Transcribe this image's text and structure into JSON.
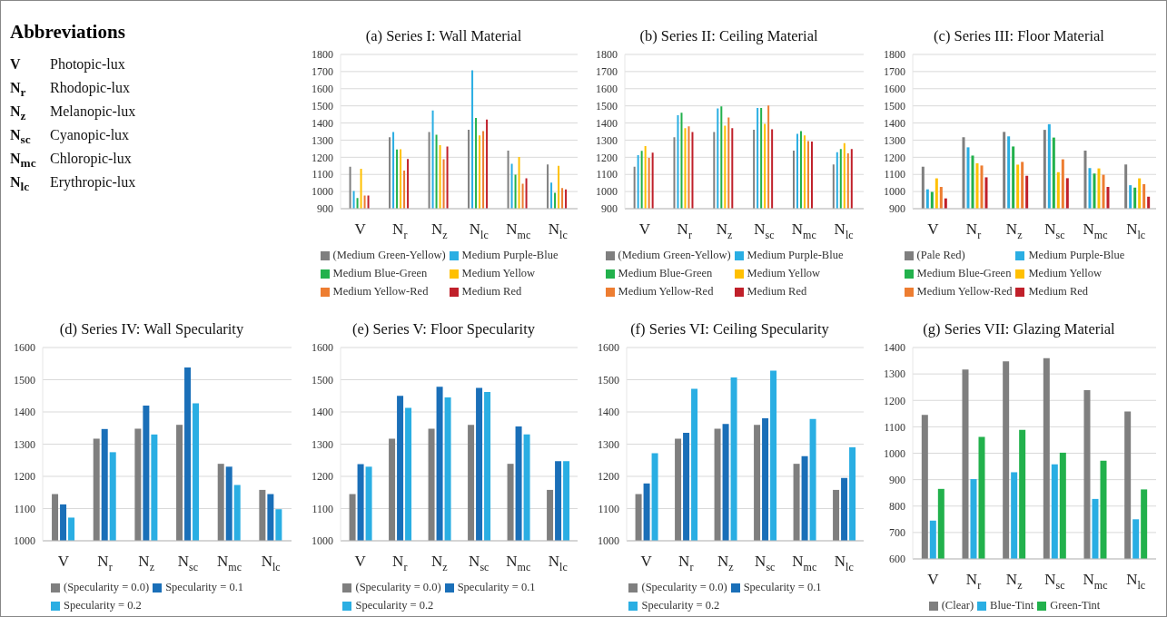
{
  "chart_data": [
    {
      "type": "other",
      "title": "Abbreviations",
      "annotations": [
        "V Photopic-lux",
        "N$_{r}$ Rhodopic-lux",
        "N$_{z}$ Melanopic-lux",
        "N$_{sc}$ Cyanopic-lux",
        "N$_{mc}$ Chloropic-lux",
        "N$_{lc}$ Erythropic-lux"
      ]
    },
    {
      "type": "bar",
      "title": "(a) Series I: Wall Material",
      "categories": [
        "V",
        "N$_{r}$",
        "N$_{z}$",
        "N$_{lc}$",
        "N$_{mc}$",
        "N$_{lc}$"
      ],
      "ylim": [
        900,
        1800
      ],
      "yticks": [
        900,
        1000,
        1100,
        1200,
        1300,
        1400,
        1500,
        1600,
        1700,
        1800
      ],
      "grid": "y",
      "legend": "bottom",
      "series": [
        {
          "name": "(Medium Green-Yellow)",
          "color": "#7f7f7f",
          "values": [
            1145,
            1317,
            1348,
            1360,
            1239,
            1158
          ]
        },
        {
          "name": "Medium Purple-Blue",
          "color": "#2aaee3",
          "values": [
            1003,
            1347,
            1473,
            1707,
            1162,
            1052
          ]
        },
        {
          "name": "Medium Blue-Green",
          "color": "#22b14c",
          "values": [
            962,
            1245,
            1332,
            1430,
            1098,
            993
          ]
        },
        {
          "name": "Medium Yellow",
          "color": "#ffc000",
          "values": [
            1133,
            1247,
            1270,
            1328,
            1202,
            1150
          ]
        },
        {
          "name": "Medium Yellow-Red",
          "color": "#ed7d31",
          "values": [
            977,
            1123,
            1188,
            1353,
            1045,
            1020
          ]
        },
        {
          "name": "Medium Red",
          "color": "#c0202a",
          "values": [
            977,
            1190,
            1263,
            1420,
            1077,
            1013
          ]
        }
      ]
    },
    {
      "type": "bar",
      "title": "(b) Series II: Ceiling Material",
      "categories": [
        "V",
        "N$_{r}$",
        "N$_{z}$",
        "N$_{sc}$",
        "N$_{mc}$",
        "N$_{lc}$"
      ],
      "ylim": [
        900,
        1800
      ],
      "yticks": [
        900,
        1000,
        1100,
        1200,
        1300,
        1400,
        1500,
        1600,
        1700,
        1800
      ],
      "grid": "y",
      "legend": "bottom",
      "series": [
        {
          "name": "(Medium Green-Yellow)",
          "color": "#7f7f7f",
          "values": [
            1145,
            1317,
            1348,
            1360,
            1239,
            1158
          ]
        },
        {
          "name": "Medium Purple-Blue",
          "color": "#2aaee3",
          "values": [
            1213,
            1445,
            1485,
            1487,
            1337,
            1230
          ]
        },
        {
          "name": "Medium Blue-Green",
          "color": "#22b14c",
          "values": [
            1238,
            1460,
            1497,
            1487,
            1353,
            1248
          ]
        },
        {
          "name": "Medium Yellow",
          "color": "#ffc000",
          "values": [
            1265,
            1370,
            1385,
            1395,
            1327,
            1283
          ]
        },
        {
          "name": "Medium Yellow-Red",
          "color": "#ed7d31",
          "values": [
            1197,
            1380,
            1432,
            1502,
            1295,
            1223
          ]
        },
        {
          "name": "Medium Red",
          "color": "#c0202a",
          "values": [
            1227,
            1348,
            1370,
            1363,
            1292,
            1248
          ]
        }
      ]
    },
    {
      "type": "bar",
      "title": "(c) Series III: Floor Material",
      "categories": [
        "V",
        "N$_{r}$",
        "N$_{z}$",
        "N$_{sc}$",
        "N$_{mc}$",
        "N$_{lc}$"
      ],
      "ylim": [
        900,
        1800
      ],
      "yticks": [
        900,
        1000,
        1100,
        1200,
        1300,
        1400,
        1500,
        1600,
        1700,
        1800
      ],
      "grid": "y",
      "legend": "bottom",
      "series": [
        {
          "name": "(Pale Red)",
          "color": "#7f7f7f",
          "values": [
            1145,
            1317,
            1348,
            1360,
            1239,
            1158
          ]
        },
        {
          "name": "Medium Purple-Blue",
          "color": "#2aaee3",
          "values": [
            1013,
            1258,
            1322,
            1393,
            1137,
            1037
          ]
        },
        {
          "name": "Medium Blue-Green",
          "color": "#22b14c",
          "values": [
            998,
            1210,
            1263,
            1315,
            1105,
            1023
          ]
        },
        {
          "name": "Medium Yellow",
          "color": "#ffc000",
          "values": [
            1077,
            1165,
            1157,
            1113,
            1135,
            1077
          ]
        },
        {
          "name": "Medium Yellow-Red",
          "color": "#ed7d31",
          "values": [
            1027,
            1152,
            1173,
            1188,
            1098,
            1043
          ]
        },
        {
          "name": "Medium Red",
          "color": "#c0202a",
          "values": [
            960,
            1083,
            1092,
            1078,
            1027,
            970
          ]
        }
      ]
    },
    {
      "type": "bar",
      "title": "(d) Series IV: Wall Specularity",
      "categories": [
        "V",
        "N$_{r}$",
        "N$_{z}$",
        "N$_{sc}$",
        "N$_{mc}$",
        "N$_{lc}$"
      ],
      "ylim": [
        1000,
        1600
      ],
      "yticks": [
        1000,
        1100,
        1200,
        1300,
        1400,
        1500,
        1600
      ],
      "grid": "y",
      "legend": "bottom",
      "series": [
        {
          "name": "(Specularity = 0.0)",
          "color": "#7f7f7f",
          "values": [
            1145,
            1317,
            1348,
            1360,
            1239,
            1158
          ]
        },
        {
          "name": "Specularity = 0.1",
          "color": "#1a6fb8",
          "values": [
            1113,
            1347,
            1420,
            1538,
            1230,
            1145
          ]
        },
        {
          "name": "Specularity = 0.2",
          "color": "#2aaee3",
          "values": [
            1072,
            1275,
            1330,
            1427,
            1173,
            1098
          ]
        }
      ]
    },
    {
      "type": "bar",
      "title": "(e) Series V: Floor Specularity",
      "categories": [
        "V",
        "N$_{r}$",
        "N$_{z}$",
        "N$_{sc}$",
        "N$_{mc}$",
        "N$_{lc}$"
      ],
      "ylim": [
        1000,
        1600
      ],
      "yticks": [
        1000,
        1100,
        1200,
        1300,
        1400,
        1500,
        1600
      ],
      "grid": "y",
      "legend": "bottom",
      "series": [
        {
          "name": "(Specularity = 0.0)",
          "color": "#7f7f7f",
          "values": [
            1145,
            1317,
            1348,
            1360,
            1239,
            1158
          ]
        },
        {
          "name": "Specularity = 0.1",
          "color": "#1a6fb8",
          "values": [
            1238,
            1450,
            1478,
            1475,
            1355,
            1247
          ]
        },
        {
          "name": "Specularity = 0.2",
          "color": "#2aaee3",
          "values": [
            1230,
            1413,
            1445,
            1462,
            1330,
            1247
          ]
        }
      ]
    },
    {
      "type": "bar",
      "title": "(f) Series VI: Ceiling Specularity",
      "categories": [
        "V",
        "N$_{r}$",
        "N$_{z}$",
        "N$_{sc}$",
        "N$_{mc}$",
        "N$_{lc}$"
      ],
      "ylim": [
        1000,
        1600
      ],
      "yticks": [
        1000,
        1100,
        1200,
        1300,
        1400,
        1500,
        1600
      ],
      "grid": "y",
      "legend": "bottom",
      "series": [
        {
          "name": "(Specularity = 0.0)",
          "color": "#7f7f7f",
          "values": [
            1145,
            1317,
            1348,
            1360,
            1239,
            1158
          ]
        },
        {
          "name": "Specularity = 0.1",
          "color": "#1a6fb8",
          "values": [
            1178,
            1335,
            1363,
            1380,
            1263,
            1195
          ]
        },
        {
          "name": "Specularity = 0.2",
          "color": "#2aaee3",
          "values": [
            1272,
            1472,
            1507,
            1528,
            1378,
            1290
          ]
        }
      ]
    },
    {
      "type": "bar",
      "title": "(g) Series VII: Glazing Material",
      "categories": [
        "V",
        "N$_{r}$",
        "N$_{z}$",
        "N$_{sc}$",
        "N$_{mc}$",
        "N$_{lc}$"
      ],
      "ylim": [
        600,
        1400
      ],
      "yticks": [
        600,
        700,
        800,
        900,
        1000,
        1100,
        1200,
        1300,
        1400
      ],
      "grid": "y",
      "legend": "bottom",
      "series": [
        {
          "name": "(Clear)",
          "color": "#7f7f7f",
          "values": [
            1145,
            1317,
            1348,
            1360,
            1239,
            1158
          ]
        },
        {
          "name": "Blue-Tint",
          "color": "#2aaee3",
          "values": [
            745,
            902,
            928,
            958,
            827,
            750
          ]
        },
        {
          "name": "Green-Tint",
          "color": "#22b14c",
          "values": [
            865,
            1062,
            1088,
            1002,
            972,
            863
          ]
        }
      ]
    }
  ]
}
